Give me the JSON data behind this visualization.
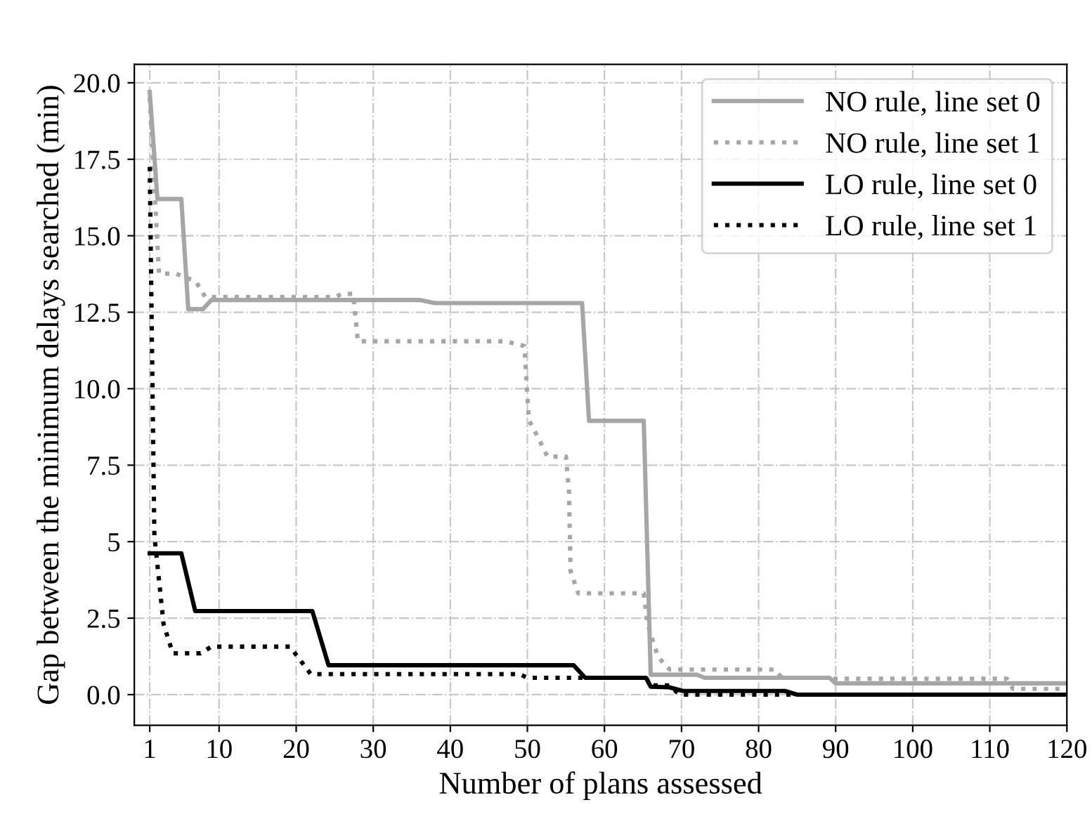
{
  "chart_data": {
    "type": "line",
    "xlabel": "Number of plans assessed",
    "ylabel": "Gap between the minimum delays searched (min)",
    "xlim": [
      -1,
      120
    ],
    "ylim": [
      -1.0,
      20.6
    ],
    "xticks": [
      1,
      10,
      20,
      30,
      40,
      50,
      60,
      70,
      80,
      90,
      100,
      110,
      120
    ],
    "yticks": [
      {
        "value": 0,
        "label": "0.0"
      },
      2.5,
      5,
      {
        "value": 7.5,
        "label": "7.5"
      },
      {
        "value": 10,
        "label": "10.0"
      },
      12.5,
      {
        "value": 15,
        "label": "15.0"
      },
      17.5,
      {
        "value": 20,
        "label": "20.0"
      }
    ],
    "grid": true,
    "legend": "top right",
    "marker": "none",
    "series": [
      {
        "name": "NO rule, line set 0",
        "color": "#a6a6a6",
        "line_style": "solid",
        "x": [
          1,
          2,
          5.1,
          6,
          7.9,
          9,
          36,
          38,
          57.1,
          58,
          65.1,
          66,
          72,
          73,
          89.2,
          90,
          120
        ],
        "values": [
          19.7,
          16.2,
          16.2,
          12.6,
          12.6,
          12.9,
          12.9,
          12.8,
          12.8,
          8.95,
          8.95,
          0.65,
          0.65,
          0.55,
          0.55,
          0.37,
          0.37
        ]
      },
      {
        "name": "NO rule, line set 1",
        "color": "#a6a6a6",
        "line_style": "dotted",
        "x": [
          1,
          2.2,
          4.4,
          7,
          8.2,
          25,
          26,
          27.4,
          28,
          47.1,
          49.6,
          50.2,
          51.4,
          52.6,
          55,
          55.4,
          55.6,
          56.6,
          65.1,
          65.6,
          66.8,
          67.7,
          68.5,
          82.2,
          83,
          89,
          90,
          112.2,
          113,
          120
        ],
        "values": [
          19.5,
          13.76,
          13.76,
          13.5,
          13.0,
          13.0,
          13.1,
          13.1,
          11.55,
          11.55,
          11.4,
          8.97,
          8.4,
          7.78,
          7.78,
          6.65,
          4.04,
          3.31,
          3.31,
          2.3,
          1.35,
          0.99,
          0.82,
          0.82,
          0.55,
          0.55,
          0.52,
          0.52,
          0.19,
          0.19
        ]
      },
      {
        "name": "LO rule, line set 0",
        "color": "#000000",
        "line_style": "solid",
        "x": [
          1,
          5.1,
          6.9,
          22.1,
          24.2,
          56,
          57.5,
          65.4,
          66,
          68.4,
          70.2,
          83.4,
          85,
          120
        ],
        "values": [
          4.62,
          4.62,
          2.73,
          2.73,
          0.96,
          0.96,
          0.55,
          0.55,
          0.26,
          0.24,
          0.12,
          0.12,
          0.0,
          0.0
        ]
      },
      {
        "name": "LO rule, line set 1",
        "color": "#000000",
        "line_style": "dotted",
        "x": [
          1,
          1.6,
          2.8,
          4.0,
          7.6,
          9,
          19.2,
          21.9,
          49,
          50,
          65.4,
          66,
          68.5,
          69.7,
          120
        ],
        "values": [
          17.25,
          5.2,
          2.3,
          1.35,
          1.35,
          1.57,
          1.57,
          0.67,
          0.67,
          0.55,
          0.55,
          0.3,
          0.3,
          0.0,
          0.0
        ]
      }
    ]
  }
}
